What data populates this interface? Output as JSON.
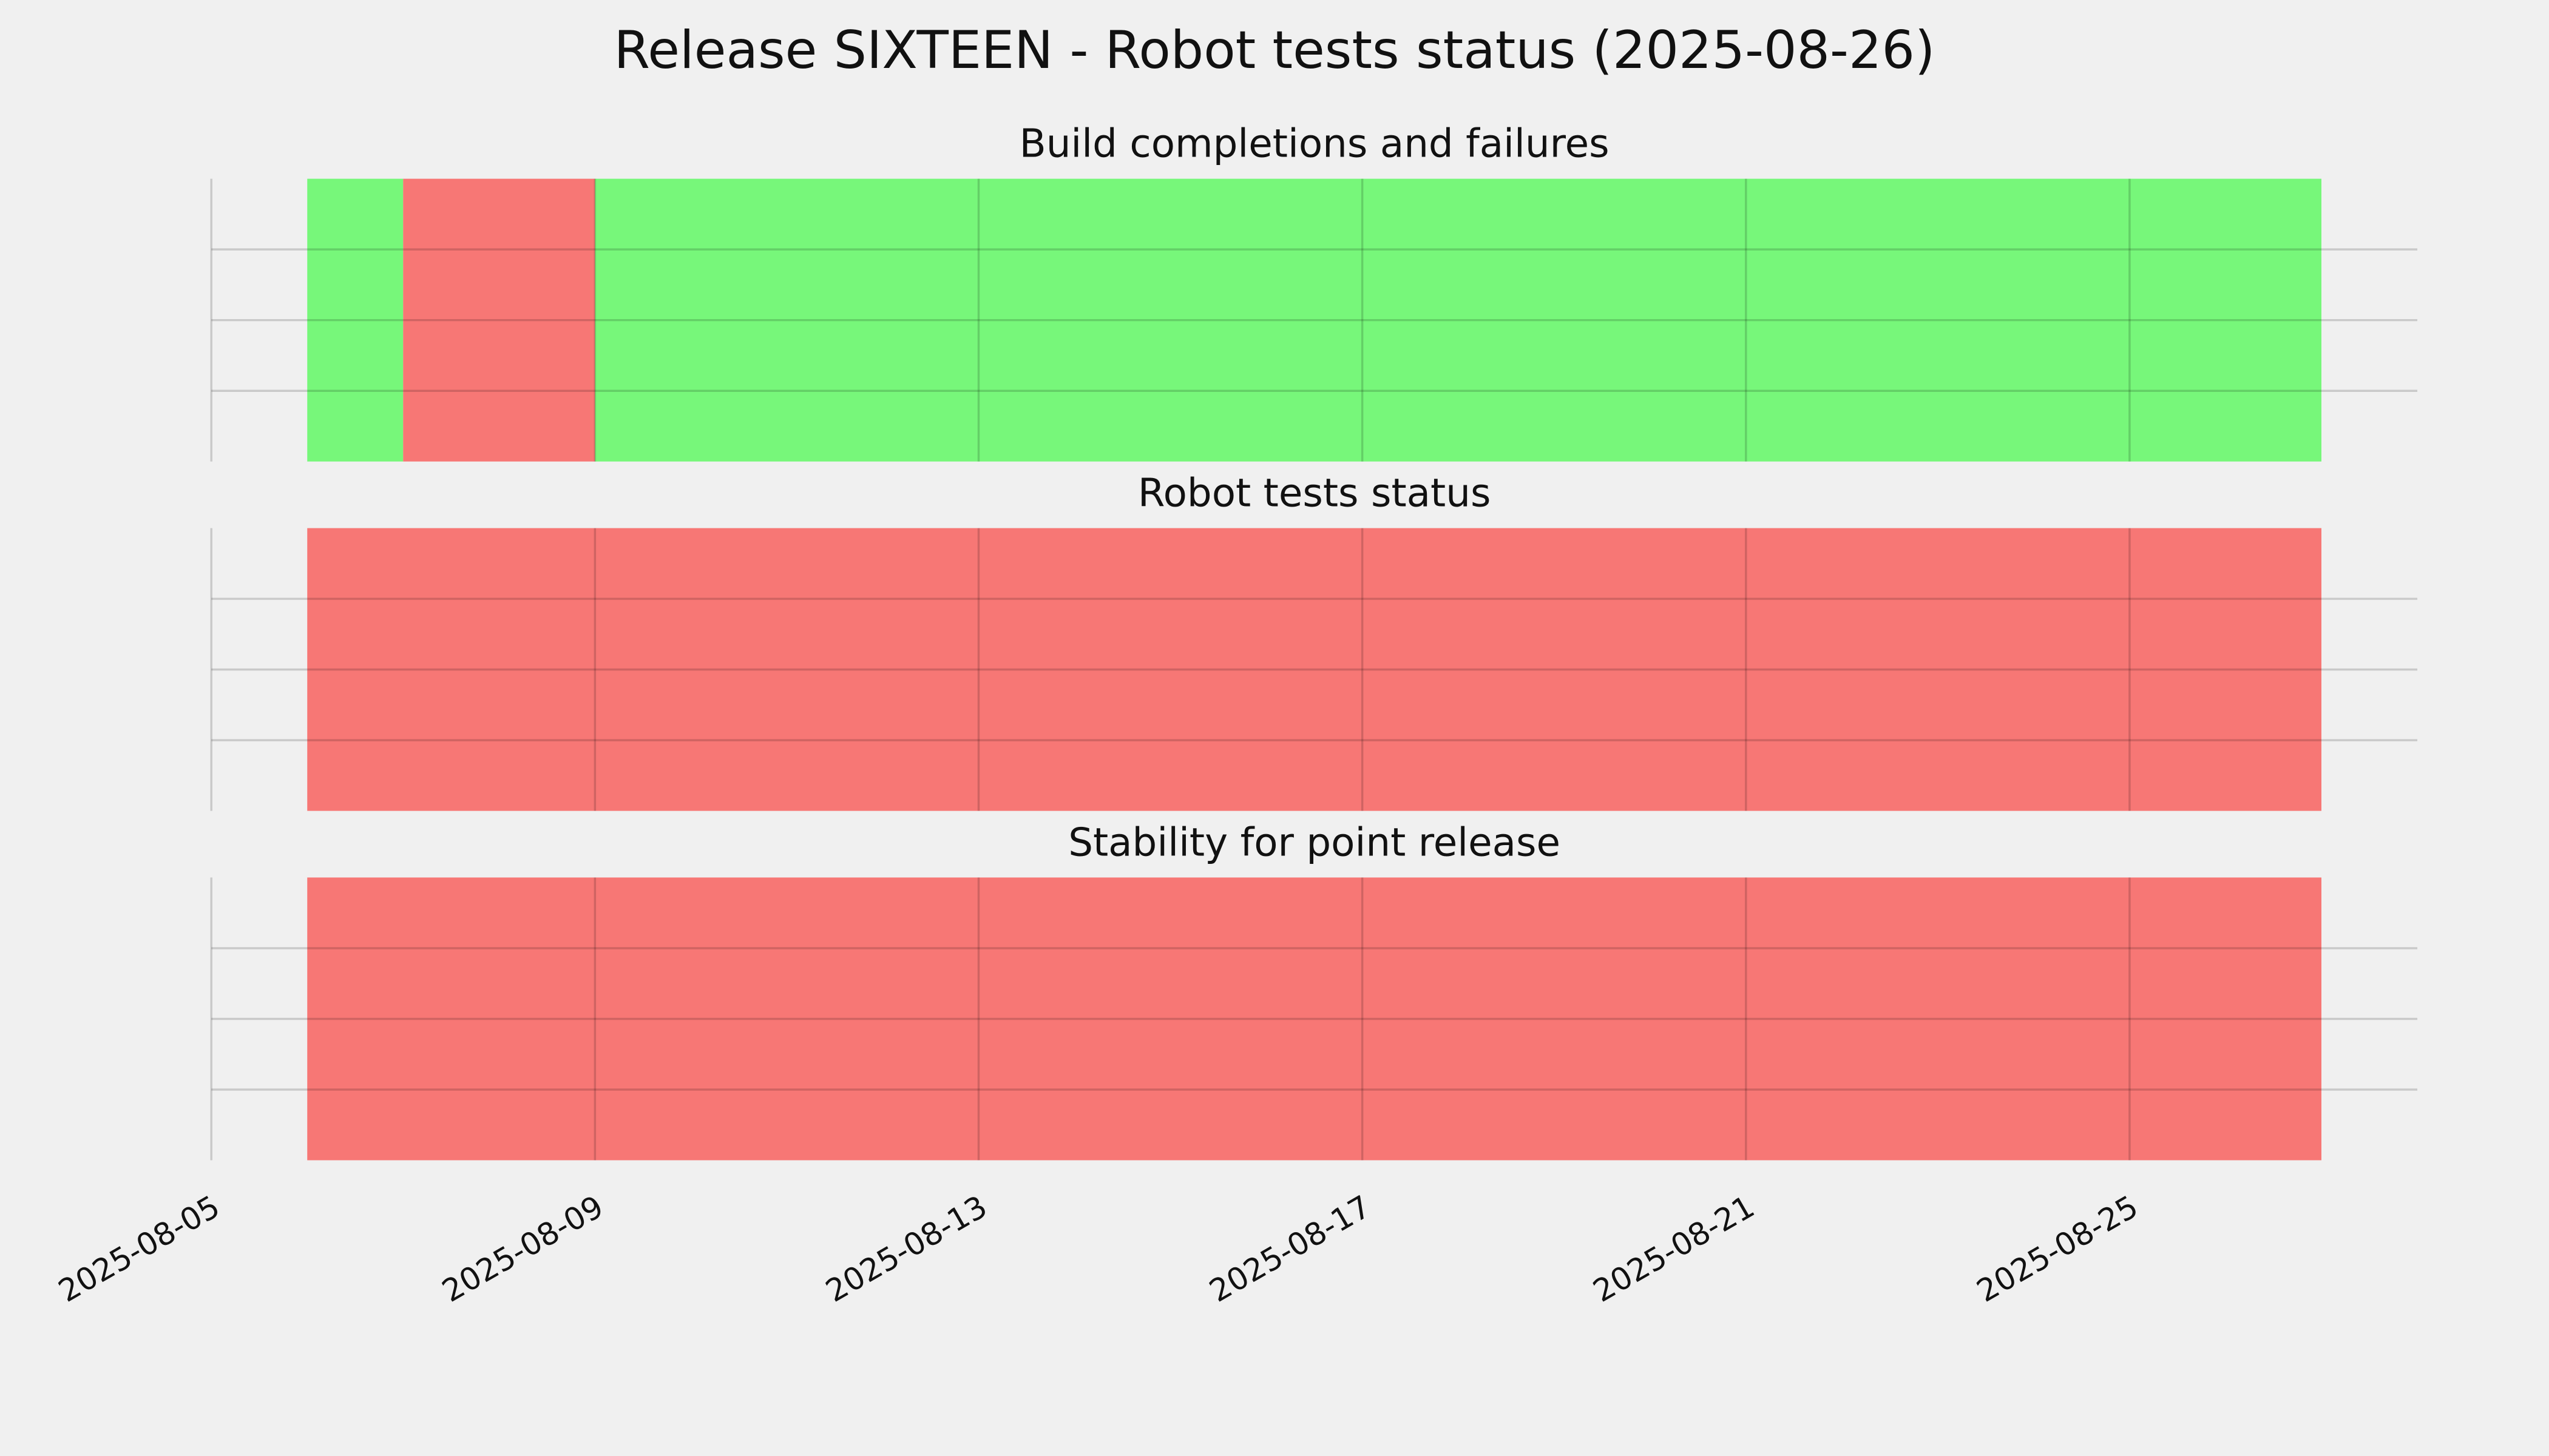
{
  "title": "Release SIXTEEN - Robot tests status (2025-08-26)",
  "chart_data": [
    {
      "type": "timeline",
      "title": "Build completions and failures",
      "spans": [
        {
          "start": "2025-08-06",
          "end": "2025-08-07",
          "color": "#77f77a"
        },
        {
          "start": "2025-08-07",
          "end": "2025-08-09",
          "color": "#f77775"
        },
        {
          "start": "2025-08-09",
          "end": "2025-08-27",
          "color": "#77f77a"
        }
      ],
      "xlim": [
        "2025-08-05",
        "2025-08-28"
      ],
      "xticks": [
        "2025-08-05",
        "2025-08-09",
        "2025-08-13",
        "2025-08-17",
        "2025-08-21",
        "2025-08-25"
      ],
      "ylim": [
        0,
        1
      ],
      "yticks": [
        0.25,
        0.5,
        0.75
      ],
      "grid": true
    },
    {
      "type": "timeline",
      "title": "Robot tests status",
      "spans": [
        {
          "start": "2025-08-06",
          "end": "2025-08-27",
          "color": "#f77775"
        }
      ],
      "xlim": [
        "2025-08-05",
        "2025-08-28"
      ],
      "xticks": [
        "2025-08-05",
        "2025-08-09",
        "2025-08-13",
        "2025-08-17",
        "2025-08-21",
        "2025-08-25"
      ],
      "ylim": [
        0,
        1
      ],
      "yticks": [
        0.25,
        0.5,
        0.75
      ],
      "grid": true
    },
    {
      "type": "timeline",
      "title": "Stability for point release",
      "spans": [
        {
          "start": "2025-08-06",
          "end": "2025-08-27",
          "color": "#f77775"
        }
      ],
      "xlim": [
        "2025-08-05",
        "2025-08-28"
      ],
      "xticks": [
        "2025-08-05",
        "2025-08-09",
        "2025-08-13",
        "2025-08-17",
        "2025-08-21",
        "2025-08-25"
      ],
      "ylim": [
        0,
        1
      ],
      "yticks": [
        0.25,
        0.5,
        0.75
      ],
      "grid": true
    }
  ]
}
